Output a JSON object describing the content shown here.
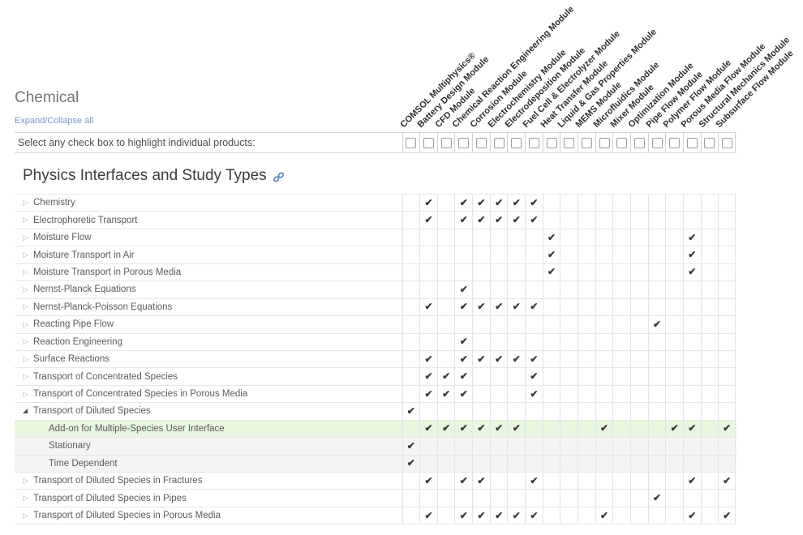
{
  "header": {
    "section_title": "Chemical",
    "expand_collapse_label": "Expand/Collapse all",
    "select_hint": "Select any check box to highlight individual products:"
  },
  "table_title": "Physics Interfaces and Study Types",
  "icons": {
    "check": "✔",
    "collapsed_triangle": "▷",
    "expanded_triangle": "◢",
    "permalink": "link-icon"
  },
  "colors": {
    "link_blue": "#7b96ca",
    "permalink_blue": "#4d79bd",
    "highlight_green": "#e8f5df",
    "shaded_gray": "#f4f4f4",
    "check_dark": "#3a3a3a"
  },
  "columns": [
    "COMSOL Multiphysics®",
    "Battery Design Module",
    "CFD Module",
    "Chemical Reaction Engineering Module",
    "Corrosion Module",
    "Electrochemistry Module",
    "Electrodeposition Module",
    "Fuel Cell & Electrolyzer Module",
    "Heat Transfer Module",
    "Liquid & Gas Properties Module",
    "MEMS Module",
    "Microfluidics Module",
    "Mixer Module",
    "Optimization Module",
    "Pipe Flow Module",
    "Polymer Flow Module",
    "Porous Media Flow Module",
    "Structural Mechanics Module",
    "Subsurface Flow Module"
  ],
  "rows": [
    {
      "label": "Chemistry",
      "indent": 0,
      "toggle": "collapsed",
      "bg": "default",
      "checks": [
        2,
        4,
        5,
        6,
        7,
        8
      ]
    },
    {
      "label": "Electrophoretic Transport",
      "indent": 0,
      "toggle": "collapsed",
      "bg": "default",
      "checks": [
        2,
        4,
        5,
        6,
        7,
        8
      ]
    },
    {
      "label": "Moisture Flow",
      "indent": 0,
      "toggle": "collapsed",
      "bg": "default",
      "checks": [
        9,
        17
      ]
    },
    {
      "label": "Moisture Transport in Air",
      "indent": 0,
      "toggle": "collapsed",
      "bg": "default",
      "checks": [
        9,
        17
      ]
    },
    {
      "label": "Moisture Transport in Porous Media",
      "indent": 0,
      "toggle": "collapsed",
      "bg": "default",
      "checks": [
        9,
        17
      ]
    },
    {
      "label": "Nernst-Planck Equations",
      "indent": 0,
      "toggle": "collapsed",
      "bg": "default",
      "checks": [
        4
      ]
    },
    {
      "label": "Nernst-Planck-Poisson Equations",
      "indent": 0,
      "toggle": "collapsed",
      "bg": "default",
      "checks": [
        2,
        4,
        5,
        6,
        7,
        8
      ]
    },
    {
      "label": "Reacting Pipe Flow",
      "indent": 0,
      "toggle": "collapsed",
      "bg": "default",
      "checks": [
        15
      ]
    },
    {
      "label": "Reaction Engineering",
      "indent": 0,
      "toggle": "collapsed",
      "bg": "default",
      "checks": [
        4
      ]
    },
    {
      "label": "Surface Reactions",
      "indent": 0,
      "toggle": "collapsed",
      "bg": "default",
      "checks": [
        2,
        4,
        5,
        6,
        7,
        8
      ]
    },
    {
      "label": "Transport of Concentrated Species",
      "indent": 0,
      "toggle": "collapsed",
      "bg": "default",
      "checks": [
        2,
        3,
        4,
        8
      ]
    },
    {
      "label": "Transport of Concentrated Species in Porous Media",
      "indent": 0,
      "toggle": "collapsed",
      "bg": "default",
      "checks": [
        2,
        3,
        4,
        8
      ]
    },
    {
      "label": "Transport of Diluted Species",
      "indent": 0,
      "toggle": "expanded",
      "bg": "default",
      "checks": [
        1
      ]
    },
    {
      "label": "Add-on for Multiple-Species User Interface",
      "indent": 1,
      "toggle": "none",
      "bg": "highlight",
      "checks": [
        2,
        3,
        4,
        5,
        6,
        7,
        12,
        16,
        17,
        19
      ]
    },
    {
      "label": "Stationary",
      "indent": 1,
      "toggle": "none",
      "bg": "shaded",
      "checks": [
        1
      ]
    },
    {
      "label": "Time Dependent",
      "indent": 1,
      "toggle": "none",
      "bg": "shaded",
      "checks": [
        1
      ]
    },
    {
      "label": "Transport of Diluted Species in Fractures",
      "indent": 0,
      "toggle": "collapsed",
      "bg": "default",
      "checks": [
        2,
        4,
        5,
        8,
        17,
        19
      ]
    },
    {
      "label": "Transport of Diluted Species in Pipes",
      "indent": 0,
      "toggle": "collapsed",
      "bg": "default",
      "checks": [
        15
      ]
    },
    {
      "label": "Transport of Diluted Species in Porous Media",
      "indent": 0,
      "toggle": "collapsed",
      "bg": "default",
      "checks": [
        2,
        4,
        5,
        6,
        7,
        8,
        12,
        17,
        19
      ]
    }
  ]
}
